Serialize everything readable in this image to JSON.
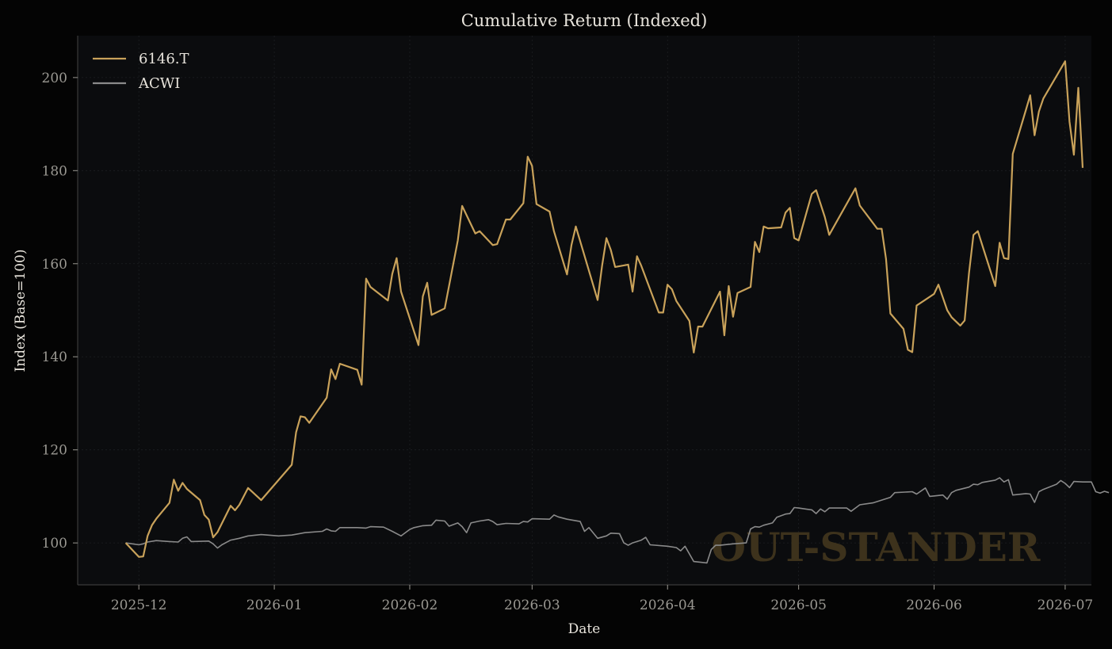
{
  "chart_data": {
    "type": "line",
    "title": "Cumulative Return (Indexed)",
    "xlabel": "Date",
    "ylabel": "Index (Base=100)",
    "xlim": [
      "2025-11-17",
      "2026-07-07"
    ],
    "ylim": [
      91,
      209
    ],
    "x_ticks": [
      "2025-12",
      "2026-01",
      "2026-02",
      "2026-03",
      "2026-04",
      "2026-05",
      "2026-06",
      "2026-07"
    ],
    "x_tick_dates": [
      "2025-12-01",
      "2026-01-01",
      "2026-02-01",
      "2026-03-01",
      "2026-04-01",
      "2026-05-01",
      "2026-06-01",
      "2026-07-01"
    ],
    "y_ticks": [
      100,
      120,
      140,
      160,
      180,
      200
    ],
    "grid": true,
    "legend_position": "top-left",
    "watermark": "OUT-STANDER",
    "colors": {
      "background": "#040404",
      "plot_bg": "#0b0c0e",
      "text": "#e8e4dc",
      "tick": "#9a9892",
      "grid": "#1d1f22",
      "spine": "#3a3a3a",
      "watermark": "#3d321c"
    },
    "series": [
      {
        "name": "6146.T",
        "color": "#c9a25a",
        "points": [
          [
            "2025-11-28",
            100.0
          ],
          [
            "2025-12-01",
            97.0
          ],
          [
            "2025-12-02",
            97.1
          ],
          [
            "2025-12-03",
            101.5
          ],
          [
            "2025-12-04",
            103.8
          ],
          [
            "2025-12-05",
            105.2
          ],
          [
            "2025-12-08",
            108.6
          ],
          [
            "2025-12-09",
            113.6
          ],
          [
            "2025-12-10",
            111.2
          ],
          [
            "2025-12-11",
            112.9
          ],
          [
            "2025-12-12",
            111.6
          ],
          [
            "2025-12-15",
            109.2
          ],
          [
            "2025-12-16",
            106.0
          ],
          [
            "2025-12-17",
            105.0
          ],
          [
            "2025-12-18",
            101.2
          ],
          [
            "2025-12-19",
            102.3
          ],
          [
            "2025-12-22",
            108.0
          ],
          [
            "2025-12-23",
            107.0
          ],
          [
            "2025-12-24",
            108.2
          ],
          [
            "2025-12-26",
            111.8
          ],
          [
            "2025-12-29",
            109.2
          ],
          [
            "2026-01-05",
            116.8
          ],
          [
            "2026-01-06",
            123.8
          ],
          [
            "2026-01-07",
            127.2
          ],
          [
            "2026-01-08",
            127.0
          ],
          [
            "2026-01-09",
            125.8
          ],
          [
            "2026-01-13",
            131.2
          ],
          [
            "2026-01-14",
            137.3
          ],
          [
            "2026-01-15",
            135.2
          ],
          [
            "2026-01-16",
            138.5
          ],
          [
            "2026-01-20",
            137.2
          ],
          [
            "2026-01-21",
            134.0
          ],
          [
            "2026-01-22",
            156.8
          ],
          [
            "2026-01-23",
            155.0
          ],
          [
            "2026-01-27",
            152.1
          ],
          [
            "2026-01-28",
            157.8
          ],
          [
            "2026-01-29",
            161.2
          ],
          [
            "2026-01-30",
            154.0
          ],
          [
            "2026-02-03",
            142.5
          ],
          [
            "2026-02-04",
            153.0
          ],
          [
            "2026-02-05",
            155.9
          ],
          [
            "2026-02-06",
            149.0
          ],
          [
            "2026-02-09",
            150.4
          ],
          [
            "2026-02-12",
            165.0
          ],
          [
            "2026-02-13",
            172.4
          ],
          [
            "2026-02-16",
            166.5
          ],
          [
            "2026-02-17",
            167.0
          ],
          [
            "2026-02-20",
            164.0
          ],
          [
            "2026-02-21",
            164.2
          ],
          [
            "2026-02-23",
            169.5
          ],
          [
            "2026-02-24",
            169.5
          ],
          [
            "2026-02-27",
            173.0
          ],
          [
            "2026-02-28",
            183.0
          ],
          [
            "2026-03-01",
            181.0
          ],
          [
            "2026-03-02",
            172.8
          ],
          [
            "2026-03-05",
            171.2
          ],
          [
            "2026-03-06",
            167.0
          ],
          [
            "2026-03-09",
            157.7
          ],
          [
            "2026-03-10",
            164.0
          ],
          [
            "2026-03-11",
            168.0
          ],
          [
            "2026-03-16",
            152.2
          ],
          [
            "2026-03-17",
            159.5
          ],
          [
            "2026-03-18",
            165.5
          ],
          [
            "2026-03-19",
            163.0
          ],
          [
            "2026-03-20",
            159.3
          ],
          [
            "2026-03-23",
            159.8
          ],
          [
            "2026-03-24",
            154.0
          ],
          [
            "2026-03-25",
            161.6
          ],
          [
            "2026-03-26",
            159.5
          ],
          [
            "2026-03-30",
            149.5
          ],
          [
            "2026-03-31",
            149.5
          ],
          [
            "2026-04-01",
            155.5
          ],
          [
            "2026-04-02",
            154.5
          ],
          [
            "2026-04-03",
            152.0
          ],
          [
            "2026-04-06",
            147.7
          ],
          [
            "2026-04-07",
            140.9
          ],
          [
            "2026-04-08",
            146.5
          ],
          [
            "2026-04-09",
            146.5
          ],
          [
            "2026-04-13",
            154.0
          ],
          [
            "2026-04-14",
            144.6
          ],
          [
            "2026-04-15",
            155.2
          ],
          [
            "2026-04-16",
            148.6
          ],
          [
            "2026-04-17",
            153.7
          ],
          [
            "2026-04-20",
            155.0
          ],
          [
            "2026-04-21",
            164.7
          ],
          [
            "2026-04-22",
            162.5
          ],
          [
            "2026-04-23",
            168.0
          ],
          [
            "2026-04-24",
            167.6
          ],
          [
            "2026-04-27",
            167.8
          ],
          [
            "2026-04-28",
            171.0
          ],
          [
            "2026-04-29",
            172.0
          ],
          [
            "2026-04-30",
            165.5
          ],
          [
            "2026-05-01",
            165.0
          ],
          [
            "2026-05-04",
            175.0
          ],
          [
            "2026-05-05",
            175.8
          ],
          [
            "2026-05-07",
            170.0
          ],
          [
            "2026-05-08",
            166.2
          ],
          [
            "2026-05-14",
            176.2
          ],
          [
            "2026-05-15",
            172.5
          ],
          [
            "2026-05-19",
            167.5
          ],
          [
            "2026-05-20",
            167.5
          ],
          [
            "2026-05-21",
            161.0
          ],
          [
            "2026-05-22",
            149.3
          ],
          [
            "2026-05-25",
            146.0
          ],
          [
            "2026-05-26",
            141.5
          ],
          [
            "2026-05-27",
            141.0
          ],
          [
            "2026-05-28",
            151.0
          ],
          [
            "2026-06-01",
            153.5
          ],
          [
            "2026-06-02",
            155.5
          ],
          [
            "2026-06-04",
            150.0
          ],
          [
            "2026-06-05",
            148.5
          ],
          [
            "2026-06-07",
            146.7
          ],
          [
            "2026-06-08",
            147.8
          ],
          [
            "2026-06-09",
            158.0
          ],
          [
            "2026-06-10",
            166.2
          ],
          [
            "2026-06-11",
            167.0
          ],
          [
            "2026-06-15",
            155.2
          ],
          [
            "2026-06-16",
            164.5
          ],
          [
            "2026-06-17",
            161.2
          ],
          [
            "2026-06-18",
            161.0
          ],
          [
            "2026-06-19",
            183.6
          ],
          [
            "2026-06-22",
            193.0
          ],
          [
            "2026-06-23",
            196.2
          ],
          [
            "2026-06-24",
            187.6
          ],
          [
            "2026-06-25",
            192.7
          ],
          [
            "2026-06-26",
            195.5
          ],
          [
            "2026-07-01",
            203.5
          ],
          [
            "2026-07-02",
            190.5
          ],
          [
            "2026-07-03",
            183.4
          ],
          [
            "2026-07-04",
            197.8
          ],
          [
            "2026-07-05",
            180.6
          ]
        ]
      },
      {
        "name": "ACWI",
        "color": "#8a8a8a",
        "points": [
          [
            "2025-11-28",
            100.0
          ],
          [
            "2025-12-01",
            99.6
          ],
          [
            "2025-12-02",
            99.8
          ],
          [
            "2025-12-03",
            100.2
          ],
          [
            "2025-12-05",
            100.5
          ],
          [
            "2025-12-08",
            100.3
          ],
          [
            "2025-12-10",
            100.2
          ],
          [
            "2025-12-11",
            101.0
          ],
          [
            "2025-12-12",
            101.3
          ],
          [
            "2025-12-13",
            100.3
          ],
          [
            "2025-12-17",
            100.4
          ],
          [
            "2025-12-18",
            99.8
          ],
          [
            "2025-12-19",
            98.9
          ],
          [
            "2025-12-20",
            99.6
          ],
          [
            "2025-12-22",
            100.6
          ],
          [
            "2025-12-24",
            101.0
          ],
          [
            "2025-12-26",
            101.5
          ],
          [
            "2025-12-29",
            101.8
          ],
          [
            "2026-01-02",
            101.5
          ],
          [
            "2026-01-05",
            101.7
          ],
          [
            "2026-01-08",
            102.2
          ],
          [
            "2026-01-12",
            102.5
          ],
          [
            "2026-01-13",
            103.0
          ],
          [
            "2026-01-14",
            102.6
          ],
          [
            "2026-01-15",
            102.5
          ],
          [
            "2026-01-16",
            103.3
          ],
          [
            "2026-01-20",
            103.3
          ],
          [
            "2026-01-22",
            103.2
          ],
          [
            "2026-01-23",
            103.5
          ],
          [
            "2026-01-26",
            103.4
          ],
          [
            "2026-01-28",
            102.5
          ],
          [
            "2026-01-30",
            101.5
          ],
          [
            "2026-02-01",
            102.9
          ],
          [
            "2026-02-02",
            103.3
          ],
          [
            "2026-02-04",
            103.7
          ],
          [
            "2026-02-06",
            103.8
          ],
          [
            "2026-02-07",
            104.9
          ],
          [
            "2026-02-09",
            104.7
          ],
          [
            "2026-02-10",
            103.6
          ],
          [
            "2026-02-12",
            104.3
          ],
          [
            "2026-02-13",
            103.5
          ],
          [
            "2026-02-14",
            102.2
          ],
          [
            "2026-02-15",
            104.3
          ],
          [
            "2026-02-17",
            104.7
          ],
          [
            "2026-02-19",
            105.0
          ],
          [
            "2026-02-20",
            104.6
          ],
          [
            "2026-02-21",
            103.9
          ],
          [
            "2026-02-23",
            104.2
          ],
          [
            "2026-02-26",
            104.1
          ],
          [
            "2026-02-27",
            104.6
          ],
          [
            "2026-02-28",
            104.5
          ],
          [
            "2026-03-01",
            105.2
          ],
          [
            "2026-03-05",
            105.1
          ],
          [
            "2026-03-06",
            106.0
          ],
          [
            "2026-03-07",
            105.6
          ],
          [
            "2026-03-09",
            105.1
          ],
          [
            "2026-03-12",
            104.6
          ],
          [
            "2026-03-13",
            102.5
          ],
          [
            "2026-03-14",
            103.3
          ],
          [
            "2026-03-16",
            101.0
          ],
          [
            "2026-03-18",
            101.5
          ],
          [
            "2026-03-19",
            102.1
          ],
          [
            "2026-03-21",
            102.0
          ],
          [
            "2026-03-22",
            100.0
          ],
          [
            "2026-03-23",
            99.5
          ],
          [
            "2026-03-24",
            100.0
          ],
          [
            "2026-03-26",
            100.6
          ],
          [
            "2026-03-27",
            101.2
          ],
          [
            "2026-03-28",
            99.6
          ],
          [
            "2026-04-01",
            99.3
          ],
          [
            "2026-04-03",
            99.0
          ],
          [
            "2026-04-04",
            98.3
          ],
          [
            "2026-04-05",
            99.3
          ],
          [
            "2026-04-07",
            96.0
          ],
          [
            "2026-04-10",
            95.7
          ],
          [
            "2026-04-11",
            98.6
          ],
          [
            "2026-04-12",
            99.5
          ],
          [
            "2026-04-13",
            99.5
          ],
          [
            "2026-04-16",
            99.8
          ],
          [
            "2026-04-19",
            100.0
          ],
          [
            "2026-04-20",
            103.0
          ],
          [
            "2026-04-21",
            103.5
          ],
          [
            "2026-04-22",
            103.4
          ],
          [
            "2026-04-23",
            103.8
          ],
          [
            "2026-04-25",
            104.3
          ],
          [
            "2026-04-26",
            105.5
          ],
          [
            "2026-04-28",
            106.2
          ],
          [
            "2026-04-29",
            106.3
          ],
          [
            "2026-04-30",
            107.6
          ],
          [
            "2026-05-01",
            107.5
          ],
          [
            "2026-05-04",
            107.1
          ],
          [
            "2026-05-05",
            106.3
          ],
          [
            "2026-05-06",
            107.3
          ],
          [
            "2026-05-07",
            106.7
          ],
          [
            "2026-05-08",
            107.5
          ],
          [
            "2026-05-12",
            107.5
          ],
          [
            "2026-05-13",
            106.8
          ],
          [
            "2026-05-14",
            107.5
          ],
          [
            "2026-05-15",
            108.2
          ],
          [
            "2026-05-18",
            108.6
          ],
          [
            "2026-05-21",
            109.5
          ],
          [
            "2026-05-22",
            109.8
          ],
          [
            "2026-05-23",
            110.8
          ],
          [
            "2026-05-27",
            111.0
          ],
          [
            "2026-05-28",
            110.5
          ],
          [
            "2026-05-30",
            111.8
          ],
          [
            "2026-05-31",
            110.0
          ],
          [
            "2026-06-03",
            110.3
          ],
          [
            "2026-06-04",
            109.4
          ],
          [
            "2026-06-05",
            110.8
          ],
          [
            "2026-06-06",
            111.3
          ],
          [
            "2026-06-09",
            112.0
          ],
          [
            "2026-06-10",
            112.6
          ],
          [
            "2026-06-11",
            112.5
          ],
          [
            "2026-06-12",
            113.0
          ],
          [
            "2026-06-15",
            113.5
          ],
          [
            "2026-06-16",
            114.0
          ],
          [
            "2026-06-17",
            113.1
          ],
          [
            "2026-06-18",
            113.6
          ],
          [
            "2026-06-19",
            110.3
          ],
          [
            "2026-06-22",
            110.6
          ],
          [
            "2026-06-23",
            110.5
          ],
          [
            "2026-06-24",
            108.7
          ],
          [
            "2026-06-25",
            111.0
          ],
          [
            "2026-06-26",
            111.5
          ],
          [
            "2026-06-29",
            112.6
          ],
          [
            "2026-06-30",
            113.4
          ],
          [
            "2026-07-01",
            112.8
          ],
          [
            "2026-07-02",
            111.9
          ],
          [
            "2026-07-03",
            113.2
          ],
          [
            "2026-07-05",
            113.1
          ],
          [
            "2026-07-07",
            113.1
          ],
          [
            "2026-07-08",
            111.0
          ],
          [
            "2026-07-09",
            110.7
          ],
          [
            "2026-07-10",
            111.1
          ],
          [
            "2026-07-11",
            110.8
          ]
        ]
      }
    ]
  }
}
